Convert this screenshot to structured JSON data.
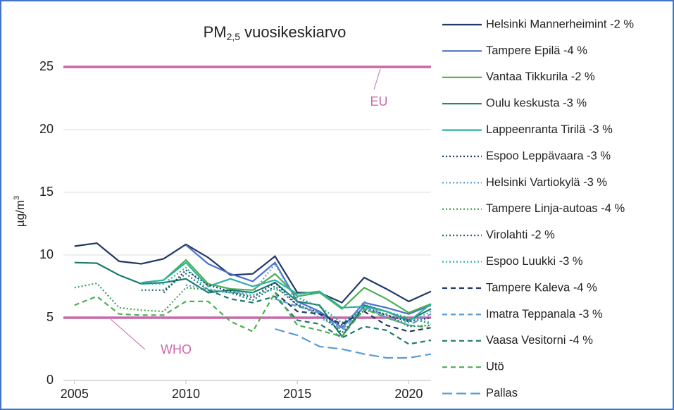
{
  "chart_data": {
    "type": "line",
    "title": [
      "PM",
      "2,5",
      " vuosikeskiarvo"
    ],
    "y_label": [
      "µg/m",
      "3"
    ],
    "x": [
      2005,
      2006,
      2007,
      2008,
      2009,
      2010,
      2011,
      2012,
      2013,
      2014,
      2015,
      2016,
      2017,
      2018,
      2019,
      2020,
      2021
    ],
    "xlim": [
      2004.5,
      2021
    ],
    "xticks": [
      2005,
      2010,
      2015,
      2020
    ],
    "ylim": [
      0,
      25
    ],
    "yticks": [
      0,
      5,
      10,
      15,
      20,
      25
    ],
    "grid": true,
    "legend": "right",
    "reference_lines": [
      {
        "label": "EU",
        "value": 25,
        "color": "#cc66aa"
      },
      {
        "label": "WHO",
        "value": 5,
        "color": "#cc66aa"
      }
    ],
    "series": [
      {
        "name": "Helsinki Mannerheimint -2 %",
        "color": "#1f3864",
        "dash": "solid",
        "values": [
          10.7,
          10.95,
          9.5,
          9.3,
          9.7,
          10.85,
          9.8,
          8.4,
          8.5,
          9.9,
          7.0,
          7.0,
          6.2,
          8.2,
          7.3,
          6.3,
          7.1
        ]
      },
      {
        "name": "Tampere Epilä -4 %",
        "color": "#4a6fd0",
        "dash": "solid",
        "values": [
          null,
          null,
          null,
          null,
          null,
          10.8,
          9.3,
          8.5,
          7.9,
          9.4,
          6.3,
          5.5,
          4.2,
          6.2,
          5.8,
          5.3,
          6.0
        ]
      },
      {
        "name": "Vantaa Tikkurila -2 %",
        "color": "#4caf50",
        "dash": "solid",
        "values": [
          null,
          null,
          null,
          null,
          8.0,
          9.6,
          7.7,
          7.3,
          7.2,
          8.5,
          6.7,
          7.0,
          5.7,
          7.4,
          6.5,
          5.4,
          6.1
        ]
      },
      {
        "name": "Oulu keskusta -3 %",
        "color": "#1b7a6b",
        "dash": "solid",
        "values": [
          9.4,
          9.35,
          8.4,
          7.7,
          7.8,
          8.1,
          7.0,
          7.2,
          7.0,
          7.8,
          6.3,
          6.0,
          3.5,
          6.0,
          5.5,
          4.8,
          5.7
        ]
      },
      {
        "name": "Lappeenranta Tirilä -3 %",
        "color": "#2ab3a0",
        "dash": "solid",
        "values": [
          null,
          null,
          null,
          7.8,
          8.0,
          9.4,
          7.5,
          8.1,
          7.5,
          8.0,
          6.9,
          7.1,
          5.8,
          5.9,
          5.5,
          4.7,
          6.1
        ]
      },
      {
        "name": "Espoo Leppävaara -3 %",
        "color": "#1f3864",
        "dash": "dotted",
        "values": [
          null,
          null,
          null,
          null,
          7.0,
          8.8,
          7.6,
          7.1,
          6.6,
          7.8,
          6.0,
          5.4,
          4.4,
          5.8,
          5.2,
          4.7,
          5.0
        ]
      },
      {
        "name": "Helsinki Vartiokylä -3 %",
        "color": "#5b9bd5",
        "dash": "dotted",
        "values": [
          null,
          null,
          null,
          null,
          null,
          7.6,
          7.3,
          7.0,
          7.0,
          9.3,
          6.2,
          5.0,
          4.1,
          6.3,
          5.0,
          4.6,
          5.5
        ]
      },
      {
        "name": "Tampere Linja-autoas -4 %",
        "color": "#3e9e52",
        "dash": "dotted",
        "values": [
          7.4,
          7.75,
          5.8,
          5.6,
          5.5,
          7.4,
          7.2,
          7.0,
          6.8,
          7.3,
          6.6,
          5.9,
          4.6,
          5.8,
          5.5,
          5.0,
          4.5
        ]
      },
      {
        "name": "Virolahti -2 %",
        "color": "#1b6a6b",
        "dash": "dotted",
        "values": [
          null,
          null,
          null,
          7.2,
          7.2,
          8.5,
          7.2,
          7.0,
          6.4,
          7.5,
          6.0,
          5.3,
          3.8,
          5.6,
          5.3,
          4.3,
          4.4
        ]
      },
      {
        "name": "Espoo Luukki -3 %",
        "color": "#2ab3a0",
        "dash": "dotted",
        "values": [
          null,
          null,
          null,
          7.7,
          7.7,
          9.0,
          7.2,
          7.0,
          6.8,
          7.3,
          6.6,
          5.9,
          4.6,
          5.8,
          5.5,
          5.0,
          4.6
        ]
      },
      {
        "name": "Tampere Kaleva -4 %",
        "color": "#1f3864",
        "dash": "dashed",
        "values": [
          null,
          null,
          null,
          null,
          null,
          null,
          null,
          null,
          null,
          7.0,
          5.5,
          5.3,
          4.5,
          5.5,
          4.4,
          3.9,
          4.2
        ]
      },
      {
        "name": "Imatra Teppanala -3 %",
        "color": "#5b9bd5",
        "dash": "dashed",
        "values": [
          null,
          null,
          null,
          null,
          null,
          null,
          null,
          null,
          null,
          6.5,
          5.9,
          5.4,
          4.0,
          5.9,
          5.0,
          4.4,
          5.3
        ]
      },
      {
        "name": "Vaasa Vesitorni -4 %",
        "color": "#1b7a6b",
        "dash": "dashed",
        "values": [
          null,
          null,
          null,
          null,
          null,
          null,
          7.2,
          6.5,
          6.2,
          6.7,
          4.8,
          4.5,
          3.4,
          4.3,
          4.0,
          2.9,
          3.2
        ]
      },
      {
        "name": "Utö",
        "color": "#4caf50",
        "dash": "dashed",
        "values": [
          6.0,
          6.7,
          5.3,
          5.2,
          5.2,
          6.3,
          6.3,
          4.7,
          3.9,
          7.0,
          4.4,
          4.0,
          3.5,
          5.7,
          5.0,
          4.4,
          4.2
        ]
      },
      {
        "name": "Pallas",
        "color": "#5b9bd5",
        "dash": "longdash",
        "values": [
          null,
          null,
          null,
          null,
          null,
          null,
          null,
          null,
          null,
          4.1,
          3.6,
          2.7,
          2.5,
          2.1,
          1.8,
          1.8,
          2.1
        ]
      }
    ]
  }
}
